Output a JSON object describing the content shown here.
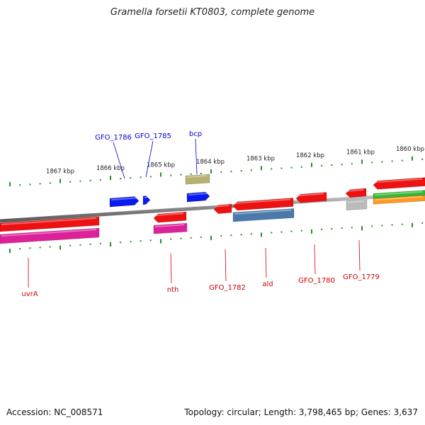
{
  "title": "Gramella forsetii KT0803, complete genome",
  "footer": {
    "accession": "Accession: NC_008571",
    "stats": "Topology: circular; Length: 3,798,465 bp; Genes: 3,637"
  },
  "ruler_labels": [
    "1867 kbp",
    "1866 kbp",
    "1865 kbp",
    "1864 kbp",
    "1863 kbp",
    "1862 kbp",
    "1861 kbp",
    "1860 kbp"
  ],
  "upper_gene_labels": [
    "GFO_1786",
    "GFO_1785",
    "bcp"
  ],
  "lower_gene_labels": [
    "uvrA",
    "nth",
    "GFO_1782",
    "ald",
    "GFO_1780",
    "GFO_1779"
  ],
  "colors": {
    "forward_label": "#0000cc",
    "reverse_label": "#cc0000",
    "tick": "#2a8a2a",
    "backbone": "#8a8a8a",
    "red_gene": "#ee1111",
    "blue_gene": "#0a1aee",
    "magenta_gene": "#dd2299",
    "steel_gene": "#4a7aaa",
    "olive_gene": "#b8b070",
    "grey_gene": "#bbbbbb",
    "green_gene": "#33bb33",
    "orange_gene": "#ff9922"
  }
}
